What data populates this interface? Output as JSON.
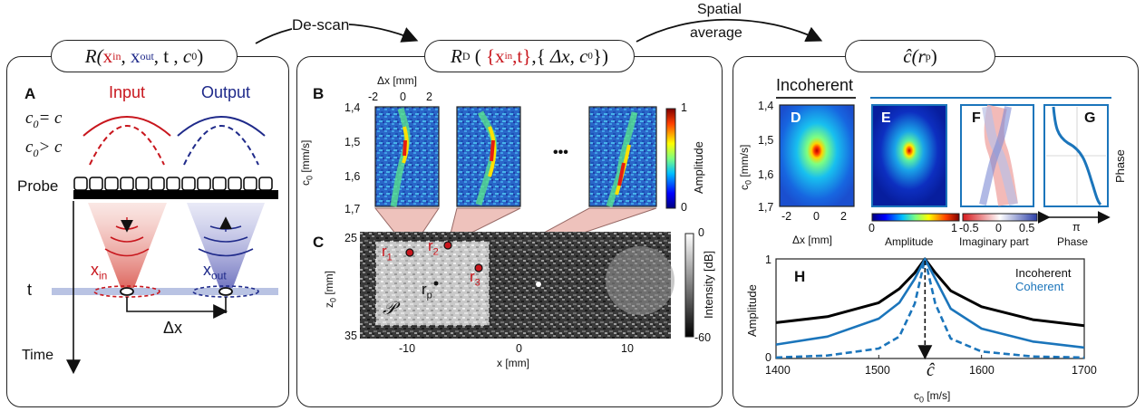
{
  "arrows": {
    "descan": "De-scan",
    "spatial_line1": "Spatial",
    "spatial_line2": "average"
  },
  "tags": {
    "left": {
      "R": "R(",
      "x_in": "x",
      "x_in_sub": "in",
      "comma1": ",",
      "x_out": "x",
      "x_out_sub": "out",
      "rest": ", t ,",
      "c0": "c",
      "c0_sub": "0",
      ")": ")"
    },
    "mid": {
      "R": "R",
      "R_sub": "D",
      "open": "(",
      "xin": "{x",
      "xin_sub": "in",
      "t": ",t}",
      ",": ",{",
      "dx": "Δx, c",
      "dx_sub": "0",
      "close": "})"
    },
    "right": {
      "chat": "ĉ(r",
      "chat_sub": "p",
      ")": ")"
    }
  },
  "panelA": {
    "label": "A",
    "input": "Input",
    "output": "Output",
    "eq1": "c",
    "eq1_sub": "0",
    "eq1_rest": "= c",
    "eq2": "c",
    "eq2_sub": "0",
    "eq2_rest": "> c",
    "probe": "Probe",
    "x_in": "x",
    "x_in_sub": "in",
    "x_out": "x",
    "x_out_sub": "out",
    "t": "t",
    "dx": "Δx",
    "time": "Time"
  },
  "panelB": {
    "label": "B",
    "dx_axis": "Δx [mm]",
    "dx_ticks": [
      "-2",
      "0",
      "2"
    ],
    "c0_label": "c",
    "c0_sub": "0",
    "c0_unit": " [mm/s]",
    "c0_ticks": [
      "1,4",
      "1,5",
      "1,6",
      "1,7"
    ],
    "dots": "•••",
    "colorbar_max": "1",
    "colorbar_min": "0",
    "colorbar_label": "Amplitude"
  },
  "panelC": {
    "label": "C",
    "z_label": "z",
    "z_sub": "0",
    "z_unit": " [mm]",
    "z_ticks": [
      "25",
      "35"
    ],
    "x_ticks": [
      "-10",
      "0",
      "10"
    ],
    "x_label": "x [mm]",
    "r1": "r",
    "r1_sub": "1",
    "r2": "r",
    "r2_sub": "2",
    "r3": "r",
    "r3_sub": "3",
    "rp": "r",
    "rp_sub": "p",
    "P": "𝒫",
    "cbar_top": "0",
    "cbar_bottom": "-60",
    "cbar_label": "Intensity [dB]"
  },
  "panelRight": {
    "incoherent_header": "Incoherent",
    "D": "D",
    "E": "E",
    "F": "F",
    "G": "G",
    "c0_label": "c",
    "c0_sub": "0",
    "c0_unit": " [mm/s]",
    "c0_ticks": [
      "1,4",
      "1,5",
      "1,6",
      "1,7"
    ],
    "dx_ticks": [
      "-2",
      "0",
      "2"
    ],
    "dx_label": "Δx [mm]",
    "amp_cbar_min": "0",
    "amp_cbar_max": "1",
    "amp_cbar_label": "Amplitude",
    "imag_cbar_min": "-0.5",
    "imag_cbar_mid": "0",
    "imag_cbar_max": "0.5",
    "imag_cbar_label": "Imaginary part",
    "phase_tick": "π",
    "phase_label": "Phase",
    "phase_side": "Phase"
  },
  "chart_data": {
    "type": "line",
    "panel": "H",
    "xlabel": "c",
    "xlabel_sub": "0",
    "xlabel_unit": " [m/s]",
    "ylabel": "Amplitude",
    "xlim": [
      1400,
      1700
    ],
    "ylim": [
      0,
      1
    ],
    "x_ticks": [
      "1400",
      "1500",
      "1600",
      "1700"
    ],
    "y_ticks": [
      "0",
      "1"
    ],
    "marker_label": "ĉ",
    "marker_x": 1545,
    "legend": [
      "Incoherent",
      "Coherent"
    ],
    "x": [
      1400,
      1450,
      1500,
      1520,
      1535,
      1545,
      1555,
      1570,
      1600,
      1650,
      1700
    ],
    "series": [
      {
        "name": "Incoherent",
        "style": "solid",
        "color": "#000000",
        "values": [
          0.36,
          0.42,
          0.56,
          0.7,
          0.86,
          1.0,
          0.86,
          0.68,
          0.52,
          0.39,
          0.33
        ]
      },
      {
        "name": "Coherent",
        "style": "solid",
        "color": "#1b75bb",
        "values": [
          0.14,
          0.22,
          0.4,
          0.56,
          0.8,
          1.0,
          0.8,
          0.5,
          0.3,
          0.17,
          0.11
        ]
      },
      {
        "name": "",
        "style": "dashed",
        "color": "#1b75bb",
        "values": [
          0.01,
          0.03,
          0.1,
          0.22,
          0.55,
          1.0,
          0.55,
          0.2,
          0.07,
          0.02,
          0.01
        ]
      }
    ]
  },
  "colors": {
    "red": "#c8161d",
    "blue": "#1f2a8a",
    "lightblue": "#1b75bb"
  }
}
